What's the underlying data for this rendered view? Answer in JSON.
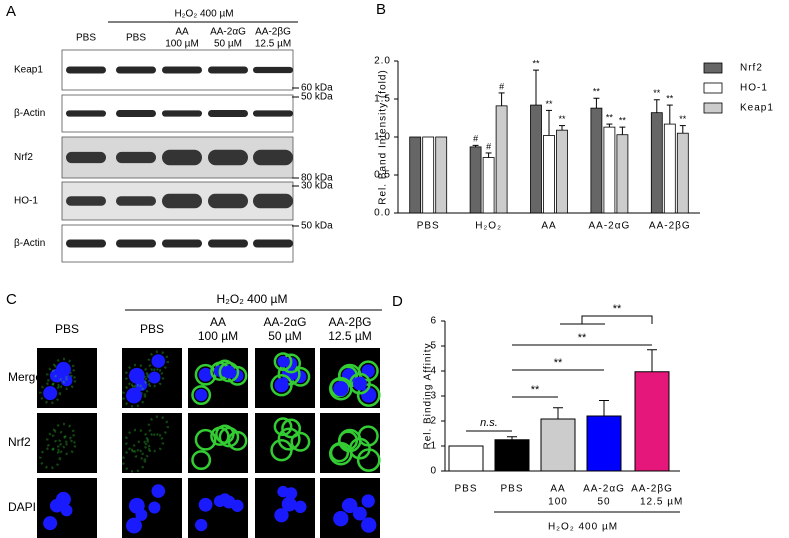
{
  "panel_a": {
    "letter": "A",
    "treatment": "H₂O₂ 400 µM",
    "columns": [
      [
        "PBS"
      ],
      [
        "PBS"
      ],
      [
        "AA",
        "100 µM"
      ],
      [
        "AA-2αG",
        "50 µM"
      ],
      [
        "AA-2βG",
        "12.5 µM"
      ]
    ],
    "rows": [
      "Keap1",
      "β-Actin",
      "Nrf2",
      "HO-1",
      "β-Actin"
    ],
    "markers": [
      "60 kDa",
      "50 kDa",
      "80 kDa",
      "30 kDa",
      "50 kDa"
    ]
  },
  "panel_c": {
    "letter": "C",
    "treatment": "H₂O₂ 400 µM",
    "columns": [
      [
        "PBS"
      ],
      [
        "PBS"
      ],
      [
        "AA",
        "100 µM"
      ],
      [
        "AA-2αG",
        "50 µM"
      ],
      [
        "AA-2βG",
        "12.5 µM"
      ]
    ],
    "rows": [
      "Merge",
      "Nrf2",
      "DAPI"
    ]
  },
  "chart_data": [
    {
      "type": "grouped-bar",
      "letter": "B",
      "ylabel": "Rel. Band Intensity (fold)",
      "categories": [
        "PBS",
        "H₂O₂",
        "AA",
        "AA-2αG",
        "AA-2βG"
      ],
      "series": [
        {
          "name": "Nrf2",
          "color": "#666666",
          "values": [
            1,
            0.87,
            1.42,
            1.38,
            1.32
          ],
          "errors": [
            0,
            0.02,
            0.46,
            0.13,
            0.17
          ],
          "labels": [
            null,
            "#",
            "**",
            "**",
            "**"
          ]
        },
        {
          "name": "HO-1",
          "color": "#ffffff",
          "values": [
            1,
            0.73,
            1.02,
            1.13,
            1.17
          ],
          "errors": [
            0,
            0.06,
            0.33,
            0.04,
            0.25
          ],
          "labels": [
            null,
            "#",
            "**",
            "**",
            "**"
          ]
        },
        {
          "name": "Keap1",
          "color": "#cccccc",
          "values": [
            1,
            1.41,
            1.09,
            1.03,
            1.05
          ],
          "errors": [
            0,
            0.17,
            0.06,
            0.1,
            0.1
          ],
          "labels": [
            null,
            "#",
            "**",
            "**",
            "**"
          ]
        }
      ],
      "ylim": [
        0,
        2.0
      ],
      "yticks": [
        {
          "value": 0,
          "label": "0.0"
        },
        0.5,
        {
          "value": 1,
          "label": "1.0"
        },
        1.5,
        {
          "value": 2,
          "label": "2.0"
        }
      ],
      "legend": "right"
    },
    {
      "type": "bar",
      "letter": "D",
      "ylabel": "Rel. Binding Affinity",
      "categories": [
        "PBS",
        "PBS",
        "AA",
        "AA-2αG",
        "AA-2βG"
      ],
      "doses": [
        null,
        null,
        "100",
        "50",
        "12.5 µM"
      ],
      "treatment": "H₂O₂ 400 µM",
      "values": [
        1,
        1.25,
        2.08,
        2.2,
        3.97
      ],
      "errors": [
        0,
        0.12,
        0.45,
        0.62,
        0.88
      ],
      "colors": [
        "#ffffff",
        "#000000",
        "#cccccc",
        "#0000ff",
        "#e6177a"
      ],
      "annotations": [
        "n.s.",
        "**",
        "**",
        "**",
        "**"
      ],
      "ylim": [
        0,
        6
      ],
      "yticks": [
        0,
        1,
        2,
        3,
        4,
        5,
        6
      ]
    }
  ]
}
